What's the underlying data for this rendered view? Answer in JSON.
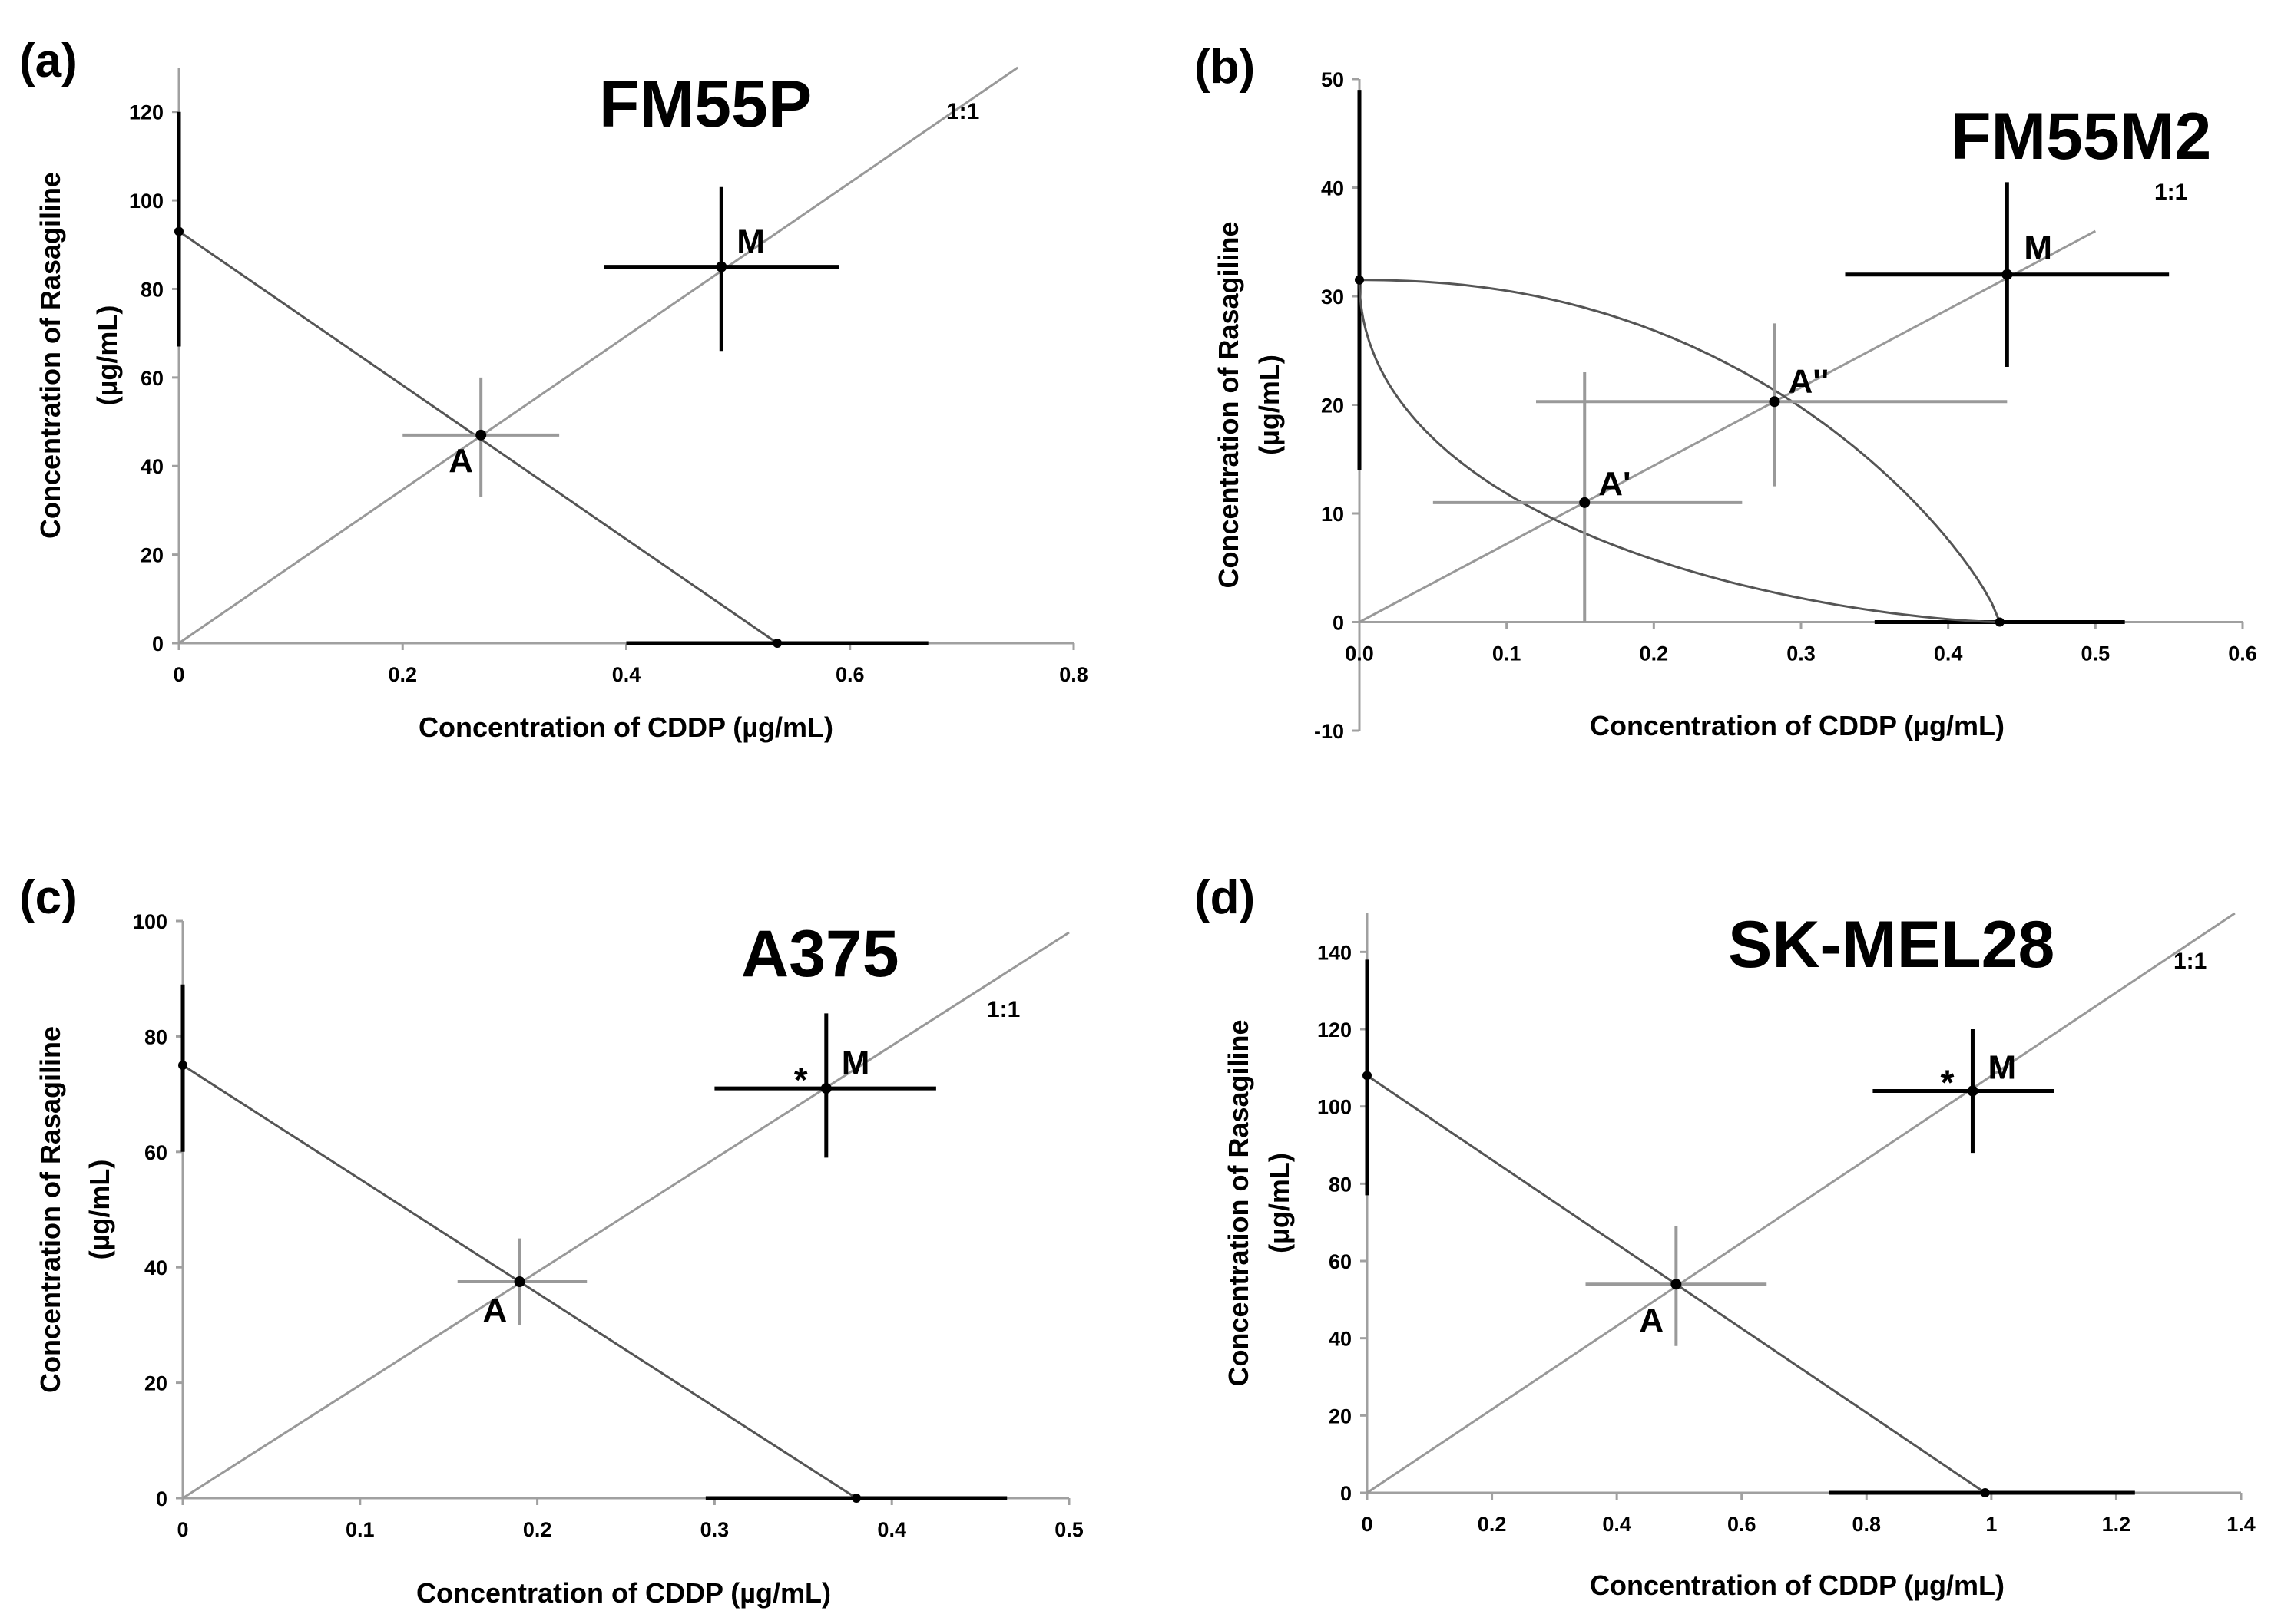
{
  "figure": {
    "colors": {
      "ink": "#000000",
      "line": "#555555",
      "grey_line": "#999999",
      "axis": "#a0a0a0"
    }
  },
  "chart_data": [
    {
      "type": "line",
      "panel": "(a)",
      "title": "FM55P",
      "xlabel": "Concentration of CDDP (µg/mL)",
      "ylabel_line1": "Concentration of Rasagiline",
      "ylabel_line2": "(µg/mL)",
      "xlim": [
        0,
        0.8
      ],
      "ylim": [
        0,
        130
      ],
      "xticks": [
        0,
        0.2,
        0.4,
        0.6,
        0.8
      ],
      "yticks": [
        0,
        20,
        40,
        60,
        80,
        100,
        120
      ],
      "xtick_labels": [
        "0",
        "0.2",
        "0.4",
        "0.6",
        "0.8"
      ],
      "ytick_labels": [
        "0",
        "20",
        "40",
        "60",
        "80",
        "100",
        "120"
      ],
      "ratio_label": "1:1",
      "ratio_line": [
        [
          0,
          0
        ],
        [
          0.75,
          130
        ]
      ],
      "additivity": [
        [
          0,
          93
        ],
        [
          0.535,
          0
        ]
      ],
      "y_intercept": {
        "value": 93,
        "err_low": 67,
        "err_high": 120
      },
      "x_intercept": {
        "value": 0.535,
        "err_low": 0.4,
        "err_high": 0.67
      },
      "points": [
        {
          "label": "A",
          "x": 0.27,
          "y": 47,
          "xerr": [
            0.2,
            0.34
          ],
          "yerr": [
            33,
            60
          ],
          "style": "grey"
        },
        {
          "label": "M",
          "x": 0.485,
          "y": 85,
          "xerr": [
            0.38,
            0.59
          ],
          "yerr": [
            66,
            103
          ],
          "style": "black"
        }
      ]
    },
    {
      "type": "line",
      "panel": "(b)",
      "title": "FM55M2",
      "xlabel": "Concentration of CDDP (µg/mL)",
      "ylabel_line1": "Concentration of Rasagiline",
      "ylabel_line2": "(µg/mL)",
      "xlim": [
        0,
        0.6
      ],
      "ylim": [
        -10,
        50
      ],
      "xticks": [
        0,
        0.1,
        0.2,
        0.3,
        0.4,
        0.5,
        0.6
      ],
      "yticks": [
        -10,
        0,
        10,
        20,
        30,
        40,
        50
      ],
      "xtick_labels": [
        "0.0",
        "0.1",
        "0.2",
        "0.3",
        "0.4",
        "0.5",
        "0.6"
      ],
      "ytick_labels": [
        "-10",
        "0",
        "10",
        "20",
        "30",
        "40",
        "50"
      ],
      "ratio_label": "1:1",
      "ratio_line": [
        [
          0,
          0
        ],
        [
          0.5,
          36
        ]
      ],
      "upper_isobole": {
        "y0": 31.5,
        "x0": 0.435
      },
      "lower_isobole": {
        "y0": 31.5,
        "x0": 0.435
      },
      "y_intercept": {
        "value": 31.5,
        "err_low": 14,
        "err_high": 49
      },
      "x_intercept": {
        "value": 0.435,
        "err_low": 0.35,
        "err_high": 0.52
      },
      "points": [
        {
          "label": "A'",
          "x": 0.153,
          "y": 11,
          "xerr": [
            0.05,
            0.26
          ],
          "yerr": [
            0,
            23
          ],
          "style": "grey"
        },
        {
          "label": "A''",
          "x": 0.282,
          "y": 20.3,
          "xerr": [
            0.12,
            0.44
          ],
          "yerr": [
            12.5,
            27.5
          ],
          "style": "grey"
        },
        {
          "label": "M",
          "x": 0.44,
          "y": 32,
          "xerr": [
            0.33,
            0.55
          ],
          "yerr": [
            23.5,
            40.5
          ],
          "style": "black"
        }
      ]
    },
    {
      "type": "line",
      "panel": "(c)",
      "title": "A375",
      "xlabel": "Concentration of CDDP (µg/mL)",
      "ylabel_line1": "Concentration of Rasagiline",
      "ylabel_line2": "(µg/mL)",
      "xlim": [
        0,
        0.5
      ],
      "ylim": [
        0,
        100
      ],
      "xticks": [
        0,
        0.1,
        0.2,
        0.3,
        0.4,
        0.5
      ],
      "yticks": [
        0,
        20,
        40,
        60,
        80,
        100
      ],
      "xtick_labels": [
        "0",
        "0.1",
        "0.2",
        "0.3",
        "0.4",
        "0.5"
      ],
      "ytick_labels": [
        "0",
        "20",
        "40",
        "60",
        "80",
        "100"
      ],
      "ratio_label": "1:1",
      "ratio_line": [
        [
          0,
          0
        ],
        [
          0.5,
          98
        ]
      ],
      "additivity": [
        [
          0,
          75
        ],
        [
          0.38,
          0
        ]
      ],
      "y_intercept": {
        "value": 75,
        "err_low": 60,
        "err_high": 89
      },
      "x_intercept": {
        "value": 0.38,
        "err_low": 0.295,
        "err_high": 0.465
      },
      "points": [
        {
          "label": "A",
          "x": 0.19,
          "y": 37.5,
          "xerr": [
            0.155,
            0.228
          ],
          "yerr": [
            30,
            45
          ],
          "style": "grey"
        },
        {
          "label": "M",
          "x": 0.363,
          "y": 71,
          "xerr": [
            0.3,
            0.425
          ],
          "yerr": [
            59,
            84
          ],
          "style": "black",
          "star": "*"
        }
      ]
    },
    {
      "type": "line",
      "panel": "(d)",
      "title": "SK-MEL28",
      "xlabel": "Concentration of CDDP (µg/mL)",
      "ylabel_line1": "Concentration of Rasagiline",
      "ylabel_line2": "(µg/mL)",
      "xlim": [
        0,
        1.4
      ],
      "ylim": [
        0,
        150
      ],
      "xticks": [
        0,
        0.2,
        0.4,
        0.6,
        0.8,
        1.0,
        1.2,
        1.4
      ],
      "yticks": [
        0,
        20,
        40,
        60,
        80,
        100,
        120,
        140
      ],
      "xtick_labels": [
        "0",
        "0.2",
        "0.4",
        "0.6",
        "0.8",
        "1",
        "1.2",
        "1.4"
      ],
      "ytick_labels": [
        "0",
        "20",
        "40",
        "60",
        "80",
        "100",
        "120",
        "140"
      ],
      "ratio_label": "1:1",
      "ratio_line": [
        [
          0,
          0
        ],
        [
          1.39,
          150
        ]
      ],
      "additivity": [
        [
          0,
          108
        ],
        [
          0.99,
          0
        ]
      ],
      "y_intercept": {
        "value": 108,
        "err_low": 77,
        "err_high": 138
      },
      "x_intercept": {
        "value": 0.99,
        "err_low": 0.74,
        "err_high": 1.23
      },
      "points": [
        {
          "label": "A",
          "x": 0.495,
          "y": 54,
          "xerr": [
            0.35,
            0.64
          ],
          "yerr": [
            38,
            69
          ],
          "style": "grey"
        },
        {
          "label": "M",
          "x": 0.97,
          "y": 104,
          "xerr": [
            0.81,
            1.1
          ],
          "yerr": [
            88,
            120
          ],
          "style": "black",
          "star": "*"
        }
      ]
    }
  ]
}
